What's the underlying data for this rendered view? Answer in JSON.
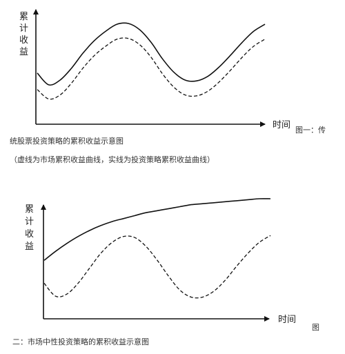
{
  "chart_data": [
    {
      "type": "line",
      "ylabel_chars": [
        "累",
        "计",
        "收",
        "益"
      ],
      "xlabel": "时间",
      "figure_tag": "图一：传",
      "caption_lines": [
        "统股票投资策略的累积收益示意图",
        "（虚线为市场累积收益曲线，实线为投资策略累积收益曲线）"
      ],
      "series": [
        {
          "style": "solid",
          "x": [
            0,
            0.05,
            0.1,
            0.15,
            0.2,
            0.25,
            0.3,
            0.35,
            0.4,
            0.45,
            0.5,
            0.55,
            0.6,
            0.65,
            0.7,
            0.75,
            0.8,
            0.85,
            0.9,
            0.95,
            1.0
          ],
          "y": [
            0.37,
            0.22,
            0.28,
            0.43,
            0.62,
            0.78,
            0.9,
            0.99,
            1.0,
            0.92,
            0.76,
            0.55,
            0.38,
            0.28,
            0.27,
            0.33,
            0.45,
            0.6,
            0.76,
            0.9,
            0.99
          ]
        },
        {
          "style": "dashed",
          "x": [
            0,
            0.05,
            0.1,
            0.15,
            0.2,
            0.25,
            0.3,
            0.35,
            0.4,
            0.45,
            0.5,
            0.55,
            0.6,
            0.65,
            0.7,
            0.75,
            0.8,
            0.85,
            0.9,
            0.95,
            1.0
          ],
          "y": [
            0.16,
            0.04,
            0.09,
            0.24,
            0.43,
            0.59,
            0.71,
            0.8,
            0.81,
            0.73,
            0.57,
            0.36,
            0.19,
            0.09,
            0.08,
            0.14,
            0.26,
            0.41,
            0.57,
            0.71,
            0.8
          ]
        }
      ],
      "xlim": [
        0,
        1
      ],
      "ylim": [
        0,
        1
      ],
      "grid": false
    },
    {
      "type": "line",
      "ylabel_chars": [
        "累",
        "计",
        "收",
        "益"
      ],
      "xlabel": "时间",
      "figure_tag": "图",
      "caption_lines": [
        "二：市场中性投资策略的累积收益示意图"
      ],
      "series": [
        {
          "style": "solid",
          "x": [
            0,
            0.05,
            0.1,
            0.15,
            0.2,
            0.25,
            0.3,
            0.35,
            0.4,
            0.45,
            0.5,
            0.55,
            0.6,
            0.65,
            0.7,
            0.75,
            0.8,
            0.85,
            0.9,
            0.95,
            1.0
          ],
          "y": [
            0.38,
            0.47,
            0.55,
            0.62,
            0.68,
            0.73,
            0.77,
            0.8,
            0.83,
            0.86,
            0.88,
            0.9,
            0.92,
            0.94,
            0.95,
            0.96,
            0.97,
            0.98,
            0.99,
            1.0,
            1.0
          ]
        },
        {
          "style": "dashed",
          "x": [
            0,
            0.05,
            0.1,
            0.15,
            0.2,
            0.25,
            0.3,
            0.35,
            0.4,
            0.45,
            0.5,
            0.55,
            0.6,
            0.65,
            0.7,
            0.75,
            0.8,
            0.85,
            0.9,
            0.95,
            1.0
          ],
          "y": [
            0.15,
            0.02,
            0.04,
            0.15,
            0.3,
            0.45,
            0.56,
            0.62,
            0.61,
            0.52,
            0.38,
            0.22,
            0.08,
            0.01,
            0.01,
            0.07,
            0.18,
            0.32,
            0.45,
            0.56,
            0.63
          ]
        }
      ],
      "xlim": [
        0,
        1
      ],
      "ylim": [
        0,
        1
      ],
      "grid": false
    }
  ]
}
